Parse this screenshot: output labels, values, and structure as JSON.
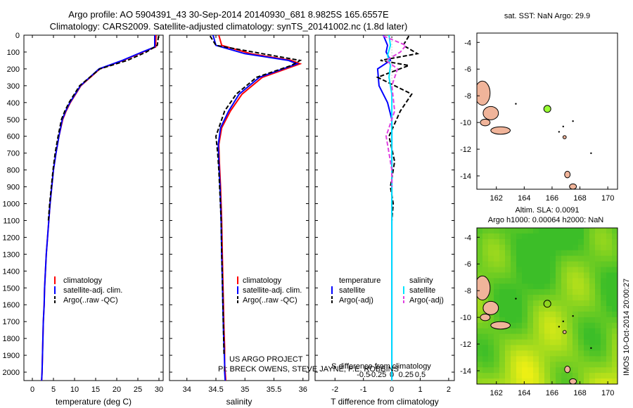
{
  "header": {
    "line1": "Argo profile: AO 5904391_43 30-Sep-2014 20140930_681 8.9825S 165.6557E",
    "line2": "Climatology: CARS2009. Satellite-adjusted climatology: synTS_20141002.nc (1.8d later)"
  },
  "legend": {
    "climatology": "climatology",
    "satellite_adj": "satellite-adj. clim.",
    "argo_raw": "Argo(..raw -QC)",
    "temperature": "temperature",
    "salinity": "salinity",
    "satellite": "satellite",
    "argo_adj": "Argo(-adj)"
  },
  "credits": {
    "line1": "US ARGO PROJECT",
    "line2": "PI: BRECK OWENS, STEVE JAYNE, P.E. ROBBINS"
  },
  "map_titles": {
    "sst": "sat. SST: NaN Argo: 29.9",
    "sla1": "Altim. SLA: 0.0091",
    "sla2": "Argo h1000: 0.00064 h2000: NaN"
  },
  "watermark": "IMOS 10-Oct-2014 20:00:27",
  "colors": {
    "climatology": "#ff0000",
    "satellite": "#0000ff",
    "argo": "#000000",
    "sal_sat": "#00e5ff",
    "sal_argo": "#e040e0",
    "float_marker": "#99ff33",
    "land": "#f0b49a"
  },
  "chart_data": [
    {
      "type": "line",
      "xlabel": "temperature (deg C)",
      "ylim": [
        2050,
        0
      ],
      "xlim": [
        -2,
        31
      ],
      "xticks": [
        0,
        5,
        10,
        15,
        20,
        25,
        30
      ],
      "yticks": [
        0,
        100,
        200,
        300,
        400,
        500,
        600,
        700,
        800,
        900,
        1000,
        1100,
        1200,
        1300,
        1400,
        1500,
        1600,
        1700,
        1800,
        1900,
        2000
      ],
      "series": [
        {
          "name": "climatology",
          "color": "#ff0000",
          "style": "solid",
          "x": [
            29.3,
            29.2,
            26.2,
            21.5,
            16.0,
            11.5,
            9.0,
            8.0,
            7.2,
            6.3,
            5.6,
            5.0,
            4.6,
            4.2,
            3.9,
            3.6,
            3.3,
            3.1,
            2.9,
            2.8,
            2.6,
            2.5,
            2.4,
            2.3,
            2.2
          ],
          "y": [
            0,
            70,
            100,
            150,
            200,
            300,
            400,
            450,
            500,
            600,
            700,
            800,
            900,
            1000,
            1100,
            1200,
            1300,
            1400,
            1500,
            1600,
            1700,
            1800,
            1900,
            2000,
            2050
          ]
        },
        {
          "name": "satellite-adj. clim.",
          "color": "#0000ff",
          "style": "solid",
          "x": [
            29.0,
            29.0,
            26.0,
            21.3,
            15.8,
            11.4,
            8.9,
            7.9,
            7.1,
            6.3,
            5.6,
            5.0,
            4.6,
            4.2,
            3.9,
            3.6,
            3.3,
            3.1,
            2.9,
            2.8,
            2.6,
            2.5,
            2.4,
            2.3,
            2.2
          ],
          "y": [
            0,
            70,
            100,
            150,
            200,
            300,
            400,
            450,
            500,
            600,
            700,
            800,
            900,
            1000,
            1100,
            1200,
            1300,
            1400,
            1500,
            1600,
            1700,
            1800,
            1900,
            2000,
            2050
          ]
        },
        {
          "name": "Argo(..raw -QC)",
          "color": "#000000",
          "style": "dashed",
          "x": [
            29.9,
            29.6,
            27.0,
            22.5,
            16.0,
            11.2,
            8.7,
            7.7,
            6.9,
            6.1,
            5.4,
            4.9,
            4.5,
            4.1,
            3.8
          ],
          "y": [
            5,
            60,
            100,
            150,
            200,
            300,
            400,
            450,
            500,
            600,
            700,
            800,
            900,
            1000,
            1100
          ]
        }
      ]
    },
    {
      "type": "line",
      "xlabel": "salinity",
      "ylim": [
        2050,
        0
      ],
      "xlim": [
        33.7,
        36.1
      ],
      "xticks": [
        34,
        34.5,
        35,
        35.5,
        36
      ],
      "series": [
        {
          "name": "climatology",
          "color": "#ff0000",
          "style": "solid",
          "x": [
            34.55,
            34.6,
            35.1,
            35.8,
            35.95,
            35.3,
            34.95,
            34.75,
            34.6,
            34.55,
            34.56,
            34.58,
            34.6,
            34.61,
            34.62,
            34.63,
            34.64,
            34.65,
            34.65,
            34.66,
            34.67
          ],
          "y": [
            0,
            60,
            110,
            150,
            170,
            250,
            350,
            450,
            550,
            650,
            750,
            900,
            1100,
            1300,
            1450,
            1600,
            1750,
            1850,
            1950,
            2000,
            2050
          ]
        },
        {
          "name": "satellite-adj. clim.",
          "color": "#0000ff",
          "style": "solid",
          "x": [
            34.45,
            34.5,
            35.0,
            35.75,
            35.9,
            35.25,
            34.9,
            34.72,
            34.58,
            34.54,
            34.55,
            34.57,
            34.59,
            34.6,
            34.61,
            34.62,
            34.63,
            34.64,
            34.65,
            34.65,
            34.66
          ],
          "y": [
            0,
            60,
            110,
            150,
            170,
            250,
            350,
            450,
            550,
            650,
            750,
            900,
            1100,
            1300,
            1450,
            1600,
            1750,
            1850,
            1950,
            2000,
            2050
          ]
        },
        {
          "name": "Argo(..raw -QC)",
          "color": "#000000",
          "style": "dashed",
          "x": [
            34.4,
            34.5,
            35.3,
            35.95,
            35.8,
            35.2,
            34.85,
            34.65,
            34.5,
            34.53,
            34.55,
            34.57,
            34.59,
            34.6,
            34.61,
            34.62,
            34.63,
            34.64
          ],
          "y": [
            5,
            60,
            110,
            150,
            180,
            250,
            350,
            450,
            600,
            700,
            800,
            950,
            1100,
            1300,
            1450,
            1600,
            1750,
            1900
          ]
        }
      ]
    },
    {
      "type": "line",
      "xlabel": "T difference from climatology",
      "xlabel_top": "S difference from climatology",
      "ylim": [
        2050,
        0
      ],
      "xlim": [
        -2.7,
        2.2
      ],
      "xticks": [
        -2,
        -1,
        0,
        1,
        2
      ],
      "xticks_top": [
        "-0.5",
        "-0.25",
        "0",
        "0.25",
        "0.5"
      ],
      "series": [
        {
          "name": "temperature satellite",
          "color": "#0000ff",
          "style": "solid",
          "x": [
            -0.3,
            -0.15,
            -0.2,
            -0.05,
            -0.5,
            -0.45,
            -0.15,
            0.0,
            0.0,
            0.0,
            0.0,
            0.0,
            0.0,
            0.0,
            0.0
          ],
          "y": [
            0,
            60,
            100,
            150,
            200,
            300,
            400,
            500,
            700,
            900,
            1100,
            1300,
            1500,
            1800,
            2050
          ]
        },
        {
          "name": "temperature Argo(-adj)",
          "color": "#000000",
          "style": "dashed",
          "x": [
            0.6,
            0.4,
            0.9,
            -0.4,
            0.6,
            -0.5,
            0.7,
            0.3,
            -0.1,
            0.1,
            -0.05,
            0.05,
            0.0
          ],
          "y": [
            5,
            60,
            110,
            150,
            180,
            250,
            350,
            450,
            600,
            750,
            900,
            1000,
            1100
          ]
        },
        {
          "name": "salinity satellite",
          "color": "#00e5ff",
          "style": "solid",
          "x": [
            -0.1,
            -0.05,
            -0.15,
            -0.05,
            -0.1,
            0.0,
            0.0,
            0.0,
            0.0,
            0.0,
            0.0,
            0.0,
            0.0,
            0.0
          ],
          "y": [
            0,
            60,
            120,
            180,
            250,
            350,
            450,
            600,
            800,
            1000,
            1300,
            1600,
            1850,
            2050
          ]
        },
        {
          "name": "salinity Argo(-adj)",
          "color": "#e040e0",
          "style": "dashed",
          "x": [
            -0.3,
            0.5,
            0.3,
            -0.2,
            0.2,
            0.0,
            0.1,
            -0.2,
            -0.1,
            0.0,
            0.0
          ],
          "y": [
            5,
            60,
            100,
            150,
            200,
            300,
            450,
            600,
            700,
            800,
            900
          ]
        }
      ]
    },
    {
      "type": "scatter",
      "title": "sat. SST: NaN Argo: 29.9",
      "xlim": [
        160.6,
        170.7
      ],
      "ylim": [
        -15,
        -3.3
      ],
      "xticks": [
        162,
        164,
        166,
        168,
        170
      ],
      "yticks": [
        -4,
        -6,
        -8,
        -10,
        -12,
        -14
      ],
      "points": [
        {
          "x": 165.66,
          "y": -8.98,
          "label": "Argo float"
        }
      ]
    },
    {
      "type": "heatmap",
      "title": "Altim. SLA: 0.0091",
      "subtitle": "Argo h1000: 0.00064 h2000: NaN",
      "xlim": [
        160.6,
        170.7
      ],
      "ylim": [
        -15,
        -3.3
      ],
      "xticks": [
        162,
        164,
        166,
        168,
        170
      ],
      "yticks": [
        -4,
        -6,
        -8,
        -10,
        -12,
        -14
      ],
      "points": [
        {
          "x": 165.66,
          "y": -8.98,
          "label": "Argo float"
        }
      ]
    }
  ]
}
